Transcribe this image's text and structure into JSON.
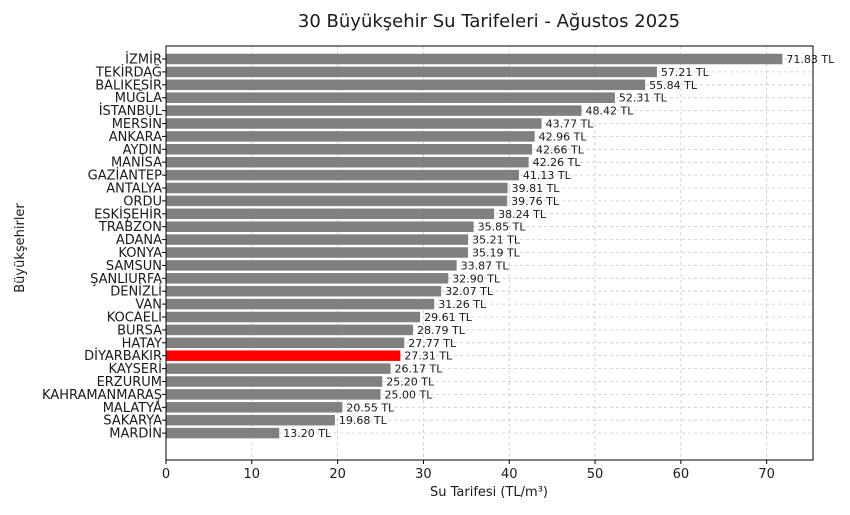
{
  "chart_data": {
    "type": "bar",
    "orientation": "horizontal",
    "title": "30 Büyükşehir Su Tarifeleri - Ağustos 2025",
    "xlabel": "Su Tarifesi (TL/m³)",
    "ylabel": "Büyükşehirler",
    "xlim": [
      0,
      75.4
    ],
    "xticks": [
      0,
      10,
      20,
      30,
      40,
      50,
      60,
      70
    ],
    "grid": true,
    "value_suffix": " TL",
    "categories": [
      "İZMİR",
      "TEKİRDAĞ",
      "BALIKESİR",
      "MUĞLA",
      "İSTANBUL",
      "MERSİN",
      "ANKARA",
      "AYDIN",
      "MANİSA",
      "GAZİANTEP",
      "ANTALYA",
      "ORDU",
      "ESKİŞEHİR",
      "TRABZON",
      "ADANA",
      "KONYA",
      "SAMSUN",
      "ŞANLIURFA",
      "DENİZLİ",
      "VAN",
      "KOCAELİ",
      "BURSA",
      "HATAY",
      "DİYARBAKIR",
      "KAYSERİ",
      "ERZURUM",
      "KAHRAMANMARAŞ",
      "MALATYA",
      "SAKARYA",
      "MARDİN"
    ],
    "values": [
      71.83,
      57.21,
      55.84,
      52.31,
      48.42,
      43.77,
      42.96,
      42.66,
      42.26,
      41.13,
      39.81,
      39.76,
      38.24,
      35.85,
      35.21,
      35.19,
      33.87,
      32.9,
      32.07,
      31.26,
      29.61,
      28.79,
      27.77,
      27.31,
      26.17,
      25.2,
      25.0,
      20.55,
      19.68,
      13.2
    ],
    "bar_color": "#808080",
    "highlight_category": "DİYARBAKIR",
    "highlight_color": "#ff0000"
  }
}
